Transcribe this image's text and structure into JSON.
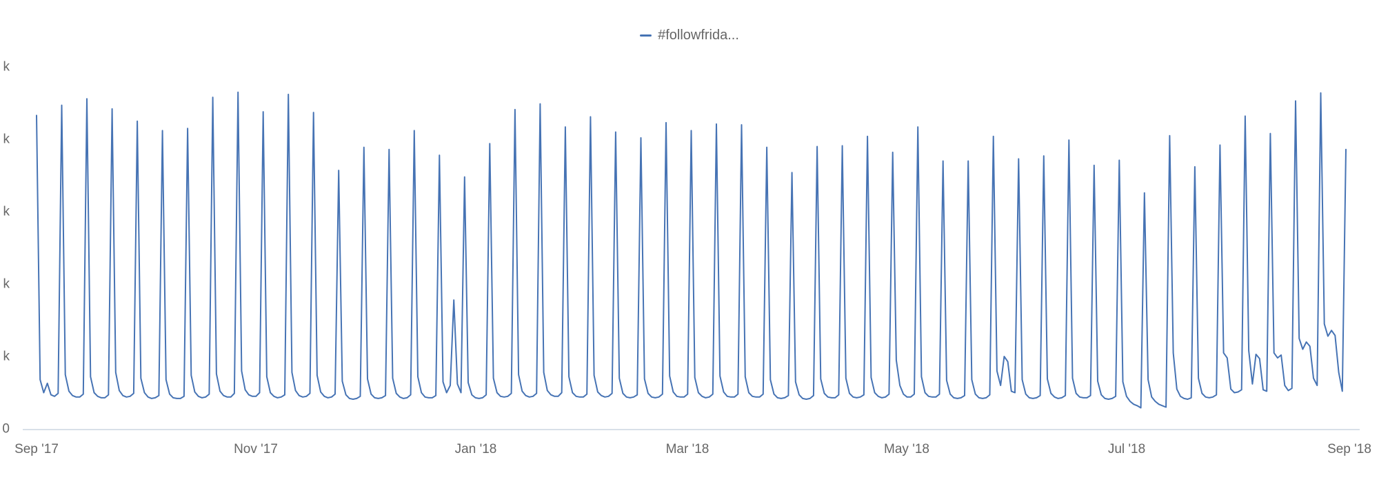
{
  "legend": {
    "label": "#followfrida...",
    "series_color": "#4673b4"
  },
  "x_axis": {
    "tick_labels": [
      "Sep '17",
      "Nov '17",
      "Jan '18",
      "Mar '18",
      "May '18",
      "Jul '18",
      "Sep '18"
    ]
  },
  "y_axis": {
    "tick_labels_top_to_bottom": [
      "k",
      "k",
      "k",
      "k",
      "k",
      "0"
    ],
    "labels_clipped": true
  },
  "chart_data": {
    "type": "line",
    "title": "",
    "xlabel": "",
    "ylabel": "",
    "grid": false,
    "legend_position": "top-center",
    "x_tick_labels": [
      "Sep '17",
      "Nov '17",
      "Jan '18",
      "Mar '18",
      "May '18",
      "Jul '18",
      "Sep '18"
    ],
    "y_tick_labels_visible": [
      "0",
      "k",
      "k",
      "k",
      "k",
      "k"
    ],
    "y_tick_values_k_estimated": [
      0,
      10,
      20,
      30,
      40,
      50
    ],
    "ylim_k": [
      0,
      52
    ],
    "axis_line_color": "#ccd6e0",
    "series": [
      {
        "name": "#followfrida...",
        "color": "#4673b4",
        "start_date": "2017-09-01",
        "end_date": "2018-08-31",
        "interval": "daily",
        "unit": "thousands (k)",
        "pattern": "weekly spikes every Friday",
        "values_k": [
          43.3,
          6.8,
          5.0,
          6.3,
          4.7,
          4.5,
          4.9,
          44.7,
          7.5,
          5.2,
          4.6,
          4.4,
          4.4,
          4.8,
          45.6,
          7.2,
          5.0,
          4.5,
          4.3,
          4.3,
          4.7,
          44.2,
          7.8,
          5.3,
          4.6,
          4.4,
          4.5,
          4.9,
          42.5,
          7.0,
          5.0,
          4.4,
          4.2,
          4.3,
          4.6,
          41.2,
          6.8,
          4.8,
          4.3,
          4.2,
          4.2,
          4.5,
          41.5,
          7.4,
          5.1,
          4.5,
          4.3,
          4.4,
          4.8,
          45.8,
          7.6,
          5.2,
          4.6,
          4.4,
          4.4,
          4.9,
          46.5,
          8.0,
          5.4,
          4.7,
          4.5,
          4.5,
          5.0,
          43.8,
          7.2,
          5.0,
          4.5,
          4.3,
          4.4,
          4.7,
          46.2,
          7.8,
          5.3,
          4.6,
          4.4,
          4.5,
          4.9,
          43.7,
          7.4,
          5.1,
          4.5,
          4.3,
          4.4,
          4.8,
          35.7,
          6.6,
          4.7,
          4.2,
          4.1,
          4.2,
          4.5,
          38.9,
          6.9,
          4.8,
          4.3,
          4.2,
          4.3,
          4.6,
          38.6,
          7.0,
          4.9,
          4.4,
          4.2,
          4.3,
          4.7,
          41.2,
          7.2,
          5.0,
          4.4,
          4.3,
          4.3,
          4.6,
          37.8,
          6.5,
          5.0,
          6.0,
          17.8,
          6.2,
          5.0,
          34.8,
          6.4,
          4.7,
          4.3,
          4.2,
          4.3,
          4.7,
          39.4,
          7.0,
          5.0,
          4.5,
          4.4,
          4.5,
          4.9,
          44.1,
          7.5,
          5.2,
          4.6,
          4.4,
          4.5,
          4.9,
          44.9,
          7.8,
          5.3,
          4.7,
          4.5,
          4.5,
          5.0,
          41.7,
          7.2,
          5.0,
          4.5,
          4.4,
          4.4,
          4.8,
          43.1,
          7.4,
          5.1,
          4.6,
          4.4,
          4.5,
          4.9,
          41.0,
          7.0,
          4.9,
          4.4,
          4.3,
          4.4,
          4.7,
          40.2,
          6.9,
          4.9,
          4.4,
          4.3,
          4.4,
          4.8,
          42.3,
          7.3,
          5.1,
          4.5,
          4.4,
          4.4,
          4.8,
          41.2,
          7.1,
          5.0,
          4.5,
          4.3,
          4.4,
          4.8,
          42.1,
          7.3,
          5.1,
          4.5,
          4.4,
          4.4,
          4.8,
          42.0,
          7.2,
          5.0,
          4.5,
          4.4,
          4.4,
          4.8,
          38.9,
          6.8,
          4.8,
          4.3,
          4.2,
          4.3,
          4.6,
          35.4,
          6.5,
          4.7,
          4.2,
          4.1,
          4.2,
          4.6,
          39.0,
          6.9,
          4.9,
          4.4,
          4.3,
          4.3,
          4.7,
          39.1,
          7.0,
          4.9,
          4.4,
          4.3,
          4.4,
          4.7,
          40.4,
          7.1,
          5.0,
          4.5,
          4.3,
          4.4,
          4.8,
          38.2,
          9.5,
          6.0,
          4.8,
          4.4,
          4.4,
          4.8,
          41.7,
          7.2,
          5.0,
          4.5,
          4.4,
          4.4,
          4.8,
          37.0,
          6.7,
          4.8,
          4.3,
          4.2,
          4.3,
          4.6,
          37.0,
          6.8,
          4.8,
          4.3,
          4.2,
          4.3,
          4.7,
          40.4,
          8.0,
          6.0,
          10.0,
          9.3,
          5.2,
          5.0,
          37.3,
          6.8,
          4.8,
          4.3,
          4.2,
          4.3,
          4.6,
          37.7,
          6.9,
          4.9,
          4.4,
          4.2,
          4.3,
          4.6,
          39.9,
          7.0,
          4.9,
          4.4,
          4.3,
          4.3,
          4.6,
          36.4,
          6.6,
          4.7,
          4.2,
          4.1,
          4.2,
          4.5,
          37.1,
          6.5,
          4.5,
          3.8,
          3.4,
          3.2,
          2.9,
          32.6,
          6.8,
          4.4,
          3.8,
          3.4,
          3.2,
          3.0,
          40.5,
          10.5,
          5.5,
          4.5,
          4.2,
          4.1,
          4.3,
          36.2,
          7.0,
          4.9,
          4.4,
          4.3,
          4.4,
          4.7,
          39.2,
          10.5,
          9.8,
          5.5,
          5.0,
          5.1,
          5.4,
          43.2,
          10.8,
          6.2,
          10.3,
          9.7,
          5.4,
          5.2,
          40.8,
          10.5,
          9.8,
          10.2,
          6.0,
          5.3,
          5.6,
          45.3,
          12.5,
          11.0,
          12.0,
          11.4,
          7.0,
          6.0,
          46.4,
          14.5,
          12.8,
          13.6,
          12.9,
          7.8,
          5.2,
          38.6
        ],
        "weekly_peaks_k": [
          {
            "date": "2017-09-01",
            "value": 43.3
          },
          {
            "date": "2017-09-08",
            "value": 44.7
          },
          {
            "date": "2017-09-15",
            "value": 45.6
          },
          {
            "date": "2017-09-22",
            "value": 44.2
          },
          {
            "date": "2017-09-29",
            "value": 42.5
          },
          {
            "date": "2017-10-06",
            "value": 41.2
          },
          {
            "date": "2017-10-13",
            "value": 41.5
          },
          {
            "date": "2017-10-20",
            "value": 45.8
          },
          {
            "date": "2017-10-27",
            "value": 46.5
          },
          {
            "date": "2017-11-03",
            "value": 43.8
          },
          {
            "date": "2017-11-10",
            "value": 46.2
          },
          {
            "date": "2017-11-17",
            "value": 43.7
          },
          {
            "date": "2017-11-24",
            "value": 35.7
          },
          {
            "date": "2017-12-01",
            "value": 38.9
          },
          {
            "date": "2017-12-08",
            "value": 38.6
          },
          {
            "date": "2017-12-15",
            "value": 41.2
          },
          {
            "date": "2017-12-22",
            "value": 37.8
          },
          {
            "date": "2017-12-29",
            "value": 34.8
          },
          {
            "date": "2018-01-05",
            "value": 39.4
          },
          {
            "date": "2018-01-12",
            "value": 44.1
          },
          {
            "date": "2018-01-19",
            "value": 44.9
          },
          {
            "date": "2018-01-26",
            "value": 41.7
          },
          {
            "date": "2018-02-02",
            "value": 43.1
          },
          {
            "date": "2018-02-09",
            "value": 41.0
          },
          {
            "date": "2018-02-16",
            "value": 40.2
          },
          {
            "date": "2018-02-23",
            "value": 42.3
          },
          {
            "date": "2018-03-02",
            "value": 41.2
          },
          {
            "date": "2018-03-09",
            "value": 42.1
          },
          {
            "date": "2018-03-16",
            "value": 42.0
          },
          {
            "date": "2018-03-23",
            "value": 38.9
          },
          {
            "date": "2018-03-30",
            "value": 35.4
          },
          {
            "date": "2018-04-06",
            "value": 39.0
          },
          {
            "date": "2018-04-13",
            "value": 39.1
          },
          {
            "date": "2018-04-20",
            "value": 40.4
          },
          {
            "date": "2018-04-27",
            "value": 38.2
          },
          {
            "date": "2018-05-04",
            "value": 41.7
          },
          {
            "date": "2018-05-11",
            "value": 37.0
          },
          {
            "date": "2018-05-18",
            "value": 37.0
          },
          {
            "date": "2018-05-25",
            "value": 40.4
          },
          {
            "date": "2018-06-01",
            "value": 37.3
          },
          {
            "date": "2018-06-08",
            "value": 37.7
          },
          {
            "date": "2018-06-15",
            "value": 39.9
          },
          {
            "date": "2018-06-22",
            "value": 36.4
          },
          {
            "date": "2018-06-29",
            "value": 37.1
          },
          {
            "date": "2018-07-06",
            "value": 32.6
          },
          {
            "date": "2018-07-13",
            "value": 40.5
          },
          {
            "date": "2018-07-20",
            "value": 36.2
          },
          {
            "date": "2018-07-27",
            "value": 39.2
          },
          {
            "date": "2018-08-03",
            "value": 43.2
          },
          {
            "date": "2018-08-10",
            "value": 40.8
          },
          {
            "date": "2018-08-17",
            "value": 45.3
          },
          {
            "date": "2018-08-24",
            "value": 46.4
          },
          {
            "date": "2018-08-31",
            "value": 38.6
          }
        ]
      }
    ]
  }
}
